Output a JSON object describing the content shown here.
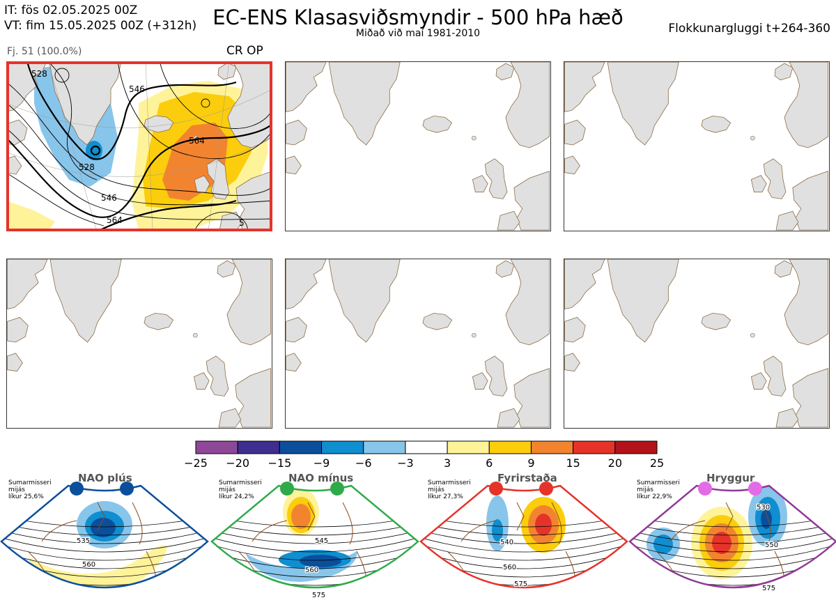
{
  "header": {
    "it": "IT: fös 02.05.2025 00Z",
    "vt": "VT: fim 15.05.2025 00Z  (+312h)",
    "title": "EC-ENS Klasasviðsmyndir - 500 hPa hæð",
    "subtitle": "Miðað við maí 1981-2010",
    "window": "Flokkunargluggi t+264-360"
  },
  "panel1": {
    "members": "Fj. 51 (100.0%)",
    "label": "CR OP",
    "contours": [
      "528",
      "546",
      "564",
      "546",
      "528",
      "564",
      "5"
    ]
  },
  "colorbar": {
    "colors": [
      "#8e4898",
      "#3f2d8f",
      "#0b4f9c",
      "#0f8ed0",
      "#88c5eb",
      "#ffffff",
      "#fff39a",
      "#fbcd0c",
      "#f28430",
      "#e5332a",
      "#b2131b"
    ],
    "labels": [
      "−25",
      "−20",
      "−15",
      "−9",
      "−6",
      "−3",
      "3",
      "6",
      "9",
      "15",
      "20",
      "25"
    ]
  },
  "clusters": [
    {
      "name": "NAO plús",
      "note1": "Sumarmisseri",
      "note2": "mijás",
      "note3": "líkur 25,6%",
      "color": "#0b4f9c",
      "c1": "535",
      "c2": "560"
    },
    {
      "name": "NAO mínus",
      "note1": "Sumarmisseri",
      "note2": "mijás",
      "note3": "líkur 24,2%",
      "color": "#2eaa4a",
      "c1": "545",
      "c2": "560",
      "c3": "575"
    },
    {
      "name": "Fyrirstaða",
      "note1": "Sumarmisseri",
      "note2": "mijás",
      "note3": "líkur 27,3%",
      "color": "#e5332a",
      "c1": "540",
      "c2": "560",
      "c3": "575"
    },
    {
      "name": "Hryggur",
      "note1": "Sumarmisseri",
      "note2": "mijás",
      "note3": "líkur 22,9%",
      "color": "#8e3a96",
      "c1": "530",
      "c2": "550",
      "c3": "575"
    }
  ]
}
